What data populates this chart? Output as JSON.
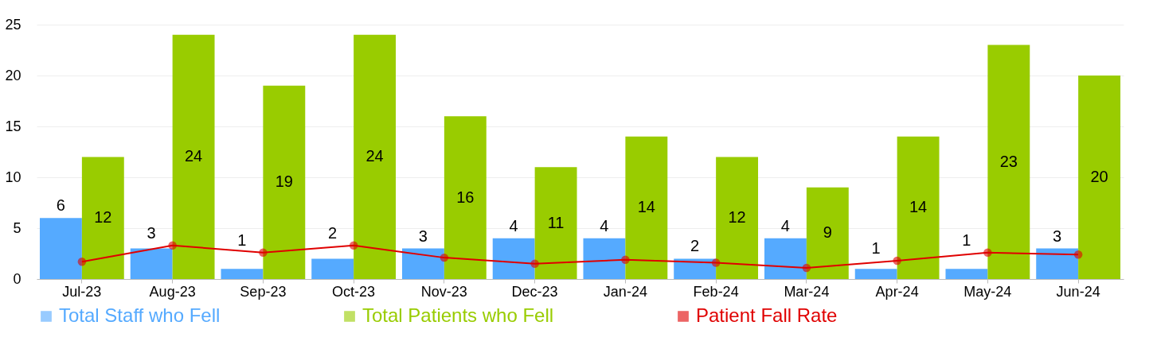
{
  "chart_data": {
    "type": "bar",
    "categories": [
      "Jul-23",
      "Aug-23",
      "Sep-23",
      "Oct-23",
      "Nov-23",
      "Dec-23",
      "Jan-24",
      "Feb-24",
      "Mar-24",
      "Apr-24",
      "May-24",
      "Jun-24"
    ],
    "series": [
      {
        "name": "Total Staff who Fell",
        "color": "#55aaff",
        "values": [
          6,
          3,
          1,
          2,
          3,
          4,
          4,
          2,
          4,
          1,
          1,
          3
        ],
        "value_labels": [
          "6",
          "3",
          "1",
          "2",
          "3",
          "4",
          "4",
          "2",
          "4",
          "1",
          "1",
          "3"
        ]
      },
      {
        "name": "Total Patients who Fell",
        "color": "#99cc00",
        "values": [
          12,
          24,
          19,
          24,
          16,
          11,
          14,
          12,
          9,
          14,
          23,
          20
        ],
        "value_labels": [
          "12",
          "24",
          "19",
          "24",
          "16",
          "11",
          "14",
          "12",
          "9",
          "14",
          "23",
          "20"
        ]
      },
      {
        "name": "Patient Fall Rate",
        "color": "#e00000",
        "type": "line",
        "marker": "circle",
        "values": [
          1.7,
          3.3,
          2.6,
          3.3,
          2.1,
          1.5,
          1.9,
          1.6,
          1.1,
          1.8,
          2.6,
          2.4
        ]
      }
    ],
    "ylim": [
      0,
      25
    ],
    "yticks": [
      0,
      5,
      10,
      15,
      20,
      25
    ],
    "grid": "y",
    "legend": "bottom"
  }
}
